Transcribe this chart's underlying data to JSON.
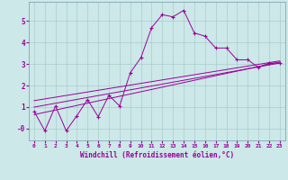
{
  "xlabel": "Windchill (Refroidissement éolien,°C)",
  "background_color": "#cce8e8",
  "grid_color": "#aacccc",
  "line_color": "#990099",
  "x_ticks": [
    0,
    1,
    2,
    3,
    4,
    5,
    6,
    7,
    8,
    9,
    10,
    11,
    12,
    13,
    14,
    15,
    16,
    17,
    18,
    19,
    20,
    21,
    22,
    23
  ],
  "y_ticks": [
    0,
    1,
    2,
    3,
    4,
    5
  ],
  "y_tick_labels": [
    "-0",
    "1",
    "2",
    "3",
    "4",
    "5"
  ],
  "ylim": [
    -0.55,
    5.9
  ],
  "xlim": [
    -0.5,
    23.5
  ],
  "data_x": [
    0,
    1,
    2,
    3,
    4,
    5,
    6,
    7,
    8,
    9,
    10,
    11,
    12,
    13,
    14,
    15,
    16,
    17,
    18,
    19,
    20,
    21,
    22,
    23
  ],
  "data_y": [
    0.8,
    -0.1,
    1.05,
    -0.1,
    0.6,
    1.35,
    0.55,
    1.55,
    1.05,
    2.6,
    3.3,
    4.7,
    5.3,
    5.2,
    5.5,
    4.45,
    4.3,
    3.75,
    3.75,
    3.2,
    3.2,
    2.85,
    3.05,
    3.05
  ],
  "reg_lines": [
    {
      "x": [
        0,
        23
      ],
      "y": [
        0.65,
        3.1
      ]
    },
    {
      "x": [
        0,
        23
      ],
      "y": [
        1.0,
        3.05
      ]
    },
    {
      "x": [
        0,
        23
      ],
      "y": [
        1.3,
        3.15
      ]
    }
  ]
}
